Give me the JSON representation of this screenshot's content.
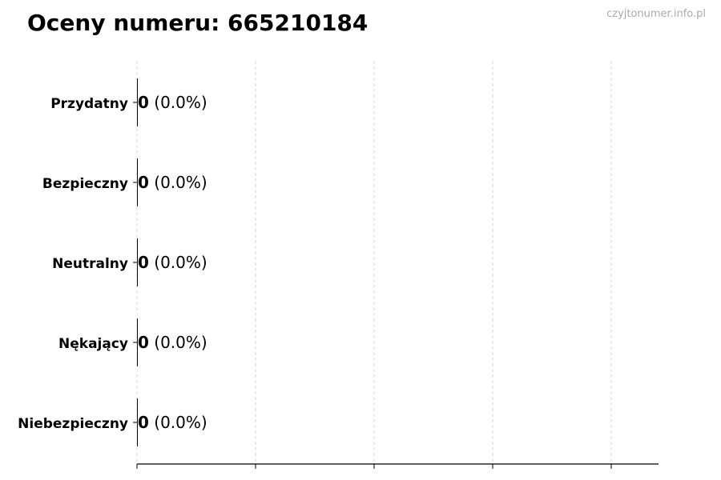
{
  "title": "Oceny numeru: 665210184",
  "watermark": "czyjtonumer.info.pl",
  "chart_data": {
    "type": "bar",
    "orientation": "horizontal",
    "title": "Oceny numeru: 665210184",
    "categories": [
      "Przydatny",
      "Bezpieczny",
      "Neutralny",
      "Nękający",
      "Niebezpieczny"
    ],
    "values": [
      0,
      0,
      0,
      0,
      0
    ],
    "labels": [
      {
        "count": "0",
        "pct": "(0.0%)"
      },
      {
        "count": "0",
        "pct": "(0.0%)"
      },
      {
        "count": "0",
        "pct": "(0.0%)"
      },
      {
        "count": "0",
        "pct": "(0.0%)"
      },
      {
        "count": "0",
        "pct": "(0.0%)"
      }
    ],
    "xlabel": "",
    "ylabel": "",
    "grid": "x dashed",
    "x_tick_labels_shown": false,
    "bar_color": "#000000"
  }
}
